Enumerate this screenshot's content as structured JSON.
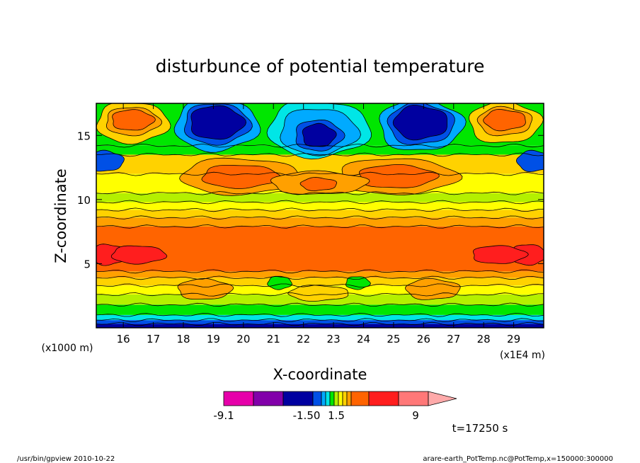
{
  "chart_data": {
    "type": "heatmap",
    "title": "disturbunce of potential temperature",
    "xlabel": "X-coordinate",
    "ylabel": "Z-coordinate",
    "x_unit": "(x1E4 m)",
    "y_unit": "(x1000 m)",
    "x_ticks": [
      "16",
      "17",
      "18",
      "19",
      "20",
      "21",
      "22",
      "23",
      "24",
      "25",
      "26",
      "27",
      "28",
      "29"
    ],
    "y_ticks": [
      "5",
      "10",
      "15"
    ],
    "xlim": [
      15.1,
      30.0
    ],
    "ylim": [
      0,
      17.5
    ],
    "colorbar": {
      "labels": [
        "-9.1",
        "-1.50",
        "1.5",
        "9"
      ],
      "colors": [
        "#e600aa",
        "#8200aa",
        "#0000a0",
        "#0050e6",
        "#00aaff",
        "#00e6e6",
        "#00e600",
        "#b4f000",
        "#ffff00",
        "#ffd200",
        "#ffa000",
        "#ff6400",
        "#ff1e1e",
        "#ff7878",
        "#ffaaaa"
      ]
    },
    "time_label": "t=17250 s",
    "bands_z": [
      {
        "z": [
          0.0,
          0.3
        ],
        "color": "#0000a0"
      },
      {
        "z": [
          0.3,
          0.6
        ],
        "color": "#0050e6"
      },
      {
        "z": [
          0.6,
          1.0
        ],
        "color": "#00e6e6"
      },
      {
        "z": [
          1.0,
          1.8
        ],
        "color": "#00e600"
      },
      {
        "z": [
          1.8,
          2.6
        ],
        "color": "#b4f000"
      },
      {
        "z": [
          2.6,
          3.3
        ],
        "color": "#ffff00"
      },
      {
        "z": [
          3.3,
          3.9
        ],
        "color": "#ffd200"
      },
      {
        "z": [
          3.9,
          4.4
        ],
        "color": "#ffa000"
      },
      {
        "z": [
          4.4,
          7.9
        ],
        "color": "#ff6400"
      },
      {
        "z": [
          7.9,
          8.6
        ],
        "color": "#ffa000"
      },
      {
        "z": [
          8.6,
          9.2
        ],
        "color": "#ffd200"
      },
      {
        "z": [
          9.2,
          9.8
        ],
        "color": "#ffff00"
      },
      {
        "z": [
          9.8,
          10.5
        ],
        "color": "#b4f000"
      },
      {
        "z": [
          10.5,
          12.0
        ],
        "color": "#ffff00"
      },
      {
        "z": [
          12.0,
          13.5
        ],
        "color": "#ffd200"
      },
      {
        "z": [
          13.5,
          14.2
        ],
        "color": "#00e600"
      },
      {
        "z": [
          14.2,
          17.5
        ],
        "color": "#00e600"
      }
    ],
    "blobs": [
      {
        "x": 16.3,
        "z": 16.0,
        "rx": 1.2,
        "rz": 1.6,
        "color": "#ffd200"
      },
      {
        "x": 16.3,
        "z": 16.1,
        "rx": 0.9,
        "rz": 1.1,
        "color": "#ffa000"
      },
      {
        "x": 16.3,
        "z": 16.2,
        "rx": 0.7,
        "rz": 0.8,
        "color": "#ff6400"
      },
      {
        "x": 28.7,
        "z": 16.0,
        "rx": 1.2,
        "rz": 1.6,
        "color": "#ffd200"
      },
      {
        "x": 28.7,
        "z": 16.1,
        "rx": 0.9,
        "rz": 1.1,
        "color": "#ffa000"
      },
      {
        "x": 28.7,
        "z": 16.2,
        "rx": 0.7,
        "rz": 0.8,
        "color": "#ff6400"
      },
      {
        "x": 19.1,
        "z": 15.8,
        "rx": 1.4,
        "rz": 2.0,
        "color": "#00aaff"
      },
      {
        "x": 19.1,
        "z": 15.9,
        "rx": 1.1,
        "rz": 1.6,
        "color": "#0050e6"
      },
      {
        "x": 19.1,
        "z": 16.0,
        "rx": 0.9,
        "rz": 1.3,
        "color": "#0000a0"
      },
      {
        "x": 25.9,
        "z": 15.8,
        "rx": 1.4,
        "rz": 2.0,
        "color": "#00aaff"
      },
      {
        "x": 25.9,
        "z": 15.9,
        "rx": 1.1,
        "rz": 1.6,
        "color": "#0050e6"
      },
      {
        "x": 25.9,
        "z": 16.0,
        "rx": 0.9,
        "rz": 1.3,
        "color": "#0000a0"
      },
      {
        "x": 22.5,
        "z": 15.5,
        "rx": 1.7,
        "rz": 2.2,
        "color": "#00e6e6"
      },
      {
        "x": 22.5,
        "z": 15.3,
        "rx": 1.3,
        "rz": 1.8,
        "color": "#00aaff"
      },
      {
        "x": 22.5,
        "z": 15.0,
        "rx": 0.8,
        "rz": 1.2,
        "color": "#0050e6"
      },
      {
        "x": 22.5,
        "z": 15.0,
        "rx": 0.55,
        "rz": 0.9,
        "color": "#0000a0"
      },
      {
        "x": 15.4,
        "z": 13.0,
        "rx": 0.6,
        "rz": 0.8,
        "color": "#0050e6"
      },
      {
        "x": 29.7,
        "z": 13.0,
        "rx": 0.6,
        "rz": 0.8,
        "color": "#0050e6"
      },
      {
        "x": 19.9,
        "z": 11.8,
        "rx": 2.0,
        "rz": 1.4,
        "color": "#ffa000"
      },
      {
        "x": 19.9,
        "z": 11.8,
        "rx": 1.3,
        "rz": 0.9,
        "color": "#ff6400"
      },
      {
        "x": 25.1,
        "z": 11.8,
        "rx": 2.0,
        "rz": 1.4,
        "color": "#ffa000"
      },
      {
        "x": 25.1,
        "z": 11.8,
        "rx": 1.3,
        "rz": 0.9,
        "color": "#ff6400"
      },
      {
        "x": 22.5,
        "z": 11.3,
        "rx": 1.6,
        "rz": 0.9,
        "color": "#ffa000"
      },
      {
        "x": 22.5,
        "z": 11.2,
        "rx": 0.6,
        "rz": 0.5,
        "color": "#ff6400"
      },
      {
        "x": 15.5,
        "z": 5.7,
        "rx": 0.6,
        "rz": 0.8,
        "color": "#ff1e1e"
      },
      {
        "x": 16.5,
        "z": 5.7,
        "rx": 0.9,
        "rz": 0.7,
        "color": "#ff1e1e"
      },
      {
        "x": 29.5,
        "z": 5.7,
        "rx": 0.6,
        "rz": 0.8,
        "color": "#ff1e1e"
      },
      {
        "x": 28.5,
        "z": 5.7,
        "rx": 0.9,
        "rz": 0.7,
        "color": "#ff1e1e"
      },
      {
        "x": 18.7,
        "z": 3.0,
        "rx": 0.9,
        "rz": 0.8,
        "color": "#ffa000"
      },
      {
        "x": 26.3,
        "z": 3.0,
        "rx": 0.9,
        "rz": 0.8,
        "color": "#ffa000"
      },
      {
        "x": 22.5,
        "z": 2.7,
        "rx": 1.0,
        "rz": 0.6,
        "color": "#ffd200"
      },
      {
        "x": 21.2,
        "z": 3.5,
        "rx": 0.4,
        "rz": 0.5,
        "color": "#00e600"
      },
      {
        "x": 23.8,
        "z": 3.5,
        "rx": 0.4,
        "rz": 0.5,
        "color": "#00e600"
      }
    ]
  },
  "footer": {
    "left": "/usr/bin/gpview   2010-10-22",
    "right": "arare-earth_PotTemp.nc@PotTemp,x=150000:300000"
  }
}
